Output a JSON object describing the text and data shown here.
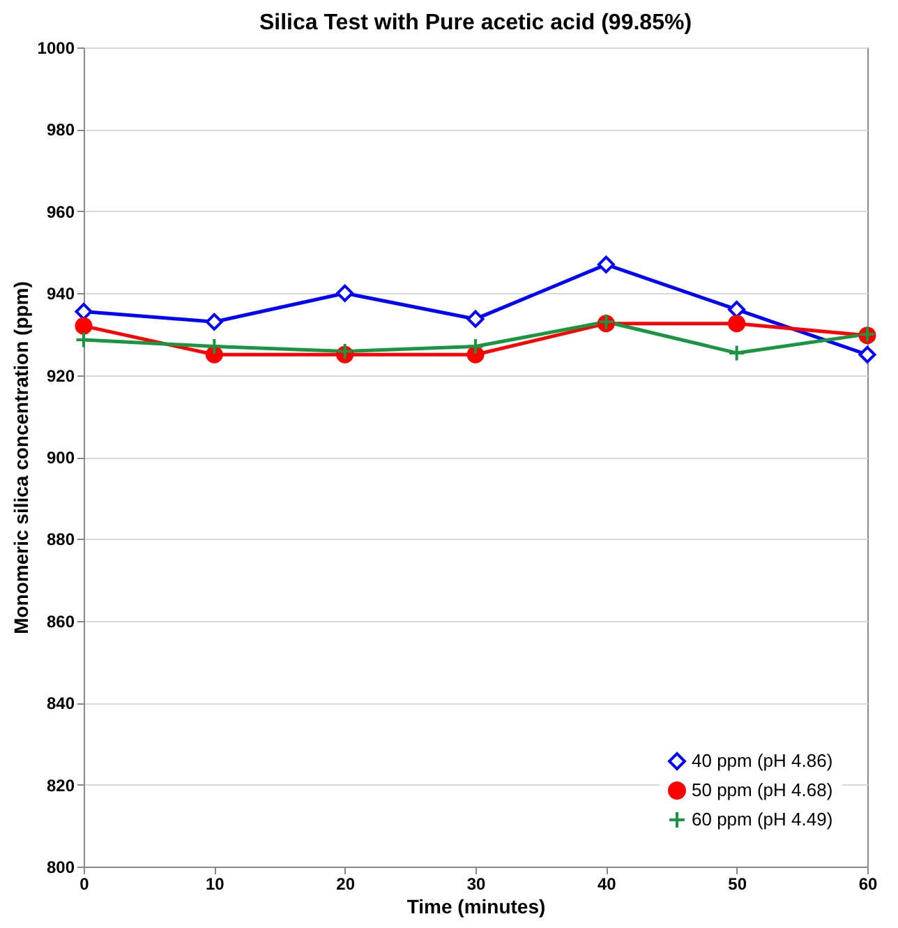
{
  "chart_data": {
    "type": "line",
    "title": "Silica Test with Pure acetic acid (99.85%)",
    "xlabel": "Time (minutes)",
    "ylabel": "Monomeric silica concentration (ppm)",
    "x": [
      0,
      10,
      20,
      30,
      40,
      50,
      60
    ],
    "series": [
      {
        "name": "40 ppm (pH 4.86)",
        "color": "#0000ff",
        "marker": "diamond",
        "values": [
          935.5,
          933,
          940,
          933.7,
          947,
          936,
          925
        ]
      },
      {
        "name": "50 ppm (pH 4.68)",
        "color": "#ff0000",
        "marker": "circle",
        "values": [
          932,
          925,
          925,
          925,
          932.6,
          932.6,
          929.7
        ]
      },
      {
        "name": "60 ppm (pH 4.49)",
        "color": "#1a9641",
        "marker": "cross",
        "values": [
          928.6,
          927,
          925.8,
          927,
          933,
          925.4,
          930
        ]
      }
    ],
    "xlim": [
      0,
      60
    ],
    "xticks": [
      0,
      10,
      20,
      30,
      40,
      50,
      60
    ],
    "ylim": [
      800,
      1000
    ],
    "yticks": [
      800,
      820,
      840,
      860,
      880,
      900,
      920,
      940,
      960,
      980,
      1000
    ],
    "grid": "y",
    "legend": "bottom right",
    "line_style": "solid"
  }
}
